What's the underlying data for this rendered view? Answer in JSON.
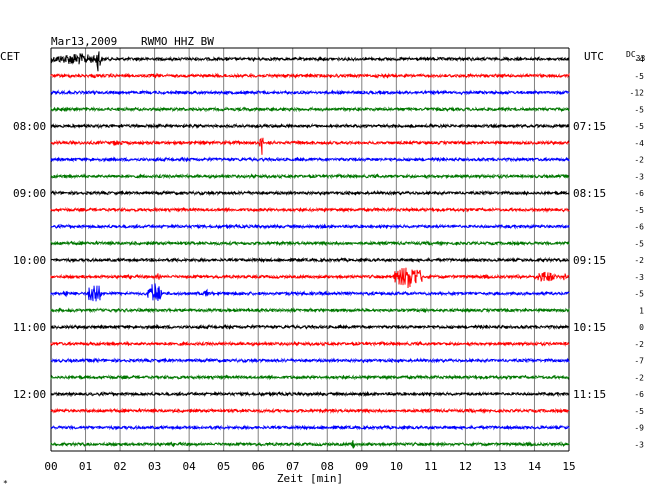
{
  "header": {
    "date": "Mar13,2009",
    "station": "RWMO HHZ BW"
  },
  "left_axis": {
    "label": "CET",
    "hour_labels": [
      "08:00",
      "09:00",
      "10:00",
      "11:00",
      "12:00"
    ]
  },
  "right_axis": {
    "label": "UTC",
    "hour_labels": [
      "07:15",
      "08:15",
      "09:15",
      "10:15",
      "11:15"
    ],
    "dc_label": "DC",
    "dc_sub": "33"
  },
  "x_axis": {
    "label": "Zeit [min]",
    "ticks": [
      "00",
      "01",
      "02",
      "03",
      "04",
      "05",
      "06",
      "07",
      "08",
      "09",
      "10",
      "11",
      "12",
      "13",
      "14",
      "15"
    ]
  },
  "corner_mark": "*",
  "colors": {
    "black": "#000000",
    "red": "#ff0000",
    "blue": "#0000ff",
    "green": "#007700",
    "grid": "#808080"
  },
  "chart_data": {
    "type": "helicorder",
    "x_range_min": [
      0,
      15
    ],
    "trace_interval_min": 15,
    "color_cycle": [
      "black",
      "red",
      "blue",
      "green"
    ],
    "traces": [
      {
        "dc": "-4"
      },
      {
        "dc": "-5"
      },
      {
        "dc": "-12"
      },
      {
        "dc": "-5"
      },
      {
        "dc": "-5"
      },
      {
        "dc": "-4"
      },
      {
        "dc": "-2"
      },
      {
        "dc": "-3"
      },
      {
        "dc": "-6"
      },
      {
        "dc": "-5"
      },
      {
        "dc": "-6"
      },
      {
        "dc": "-5"
      },
      {
        "dc": "-2"
      },
      {
        "dc": "-3"
      },
      {
        "dc": "-5"
      },
      {
        "dc": "1"
      },
      {
        "dc": "0"
      },
      {
        "dc": "-2"
      },
      {
        "dc": "-7"
      },
      {
        "dc": "-2"
      },
      {
        "dc": "-6"
      },
      {
        "dc": "-5"
      },
      {
        "dc": "-9"
      },
      {
        "dc": "-3"
      }
    ],
    "events": [
      {
        "trace": 0,
        "start_min": 0.0,
        "end_min": 1.5,
        "amp": 0.45
      },
      {
        "trace": 0,
        "start_min": 1.3,
        "end_min": 1.45,
        "amp": 1.0
      },
      {
        "trace": 1,
        "start_min": 1.2,
        "end_min": 1.35,
        "amp": 0.2
      },
      {
        "trace": 5,
        "start_min": 1.7,
        "end_min": 2.1,
        "amp": 0.25
      },
      {
        "trace": 5,
        "start_min": 6.05,
        "end_min": 6.15,
        "amp": 1.0
      },
      {
        "trace": 13,
        "start_min": 9.9,
        "end_min": 10.8,
        "amp": 0.9
      },
      {
        "trace": 13,
        "start_min": 14.0,
        "end_min": 14.6,
        "amp": 0.45
      },
      {
        "trace": 13,
        "start_min": 14.8,
        "end_min": 14.95,
        "amp": 0.35
      },
      {
        "trace": 13,
        "start_min": 3.0,
        "end_min": 3.2,
        "amp": 0.25
      },
      {
        "trace": 14,
        "start_min": 0.35,
        "end_min": 0.5,
        "amp": 0.3
      },
      {
        "trace": 14,
        "start_min": 1.05,
        "end_min": 1.45,
        "amp": 1.0
      },
      {
        "trace": 14,
        "start_min": 2.8,
        "end_min": 3.2,
        "amp": 0.9
      },
      {
        "trace": 14,
        "start_min": 4.4,
        "end_min": 4.6,
        "amp": 0.3
      },
      {
        "trace": 23,
        "start_min": 8.7,
        "end_min": 8.8,
        "amp": 0.5
      }
    ]
  }
}
